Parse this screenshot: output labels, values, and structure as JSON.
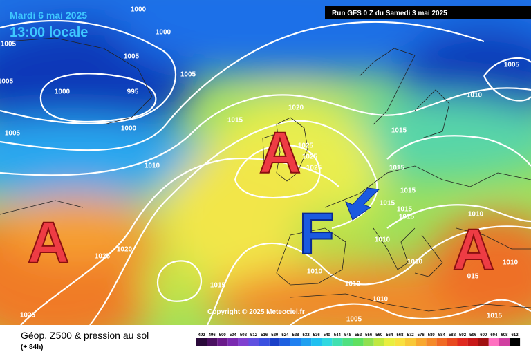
{
  "header": {
    "date": "Mardi 6 mai 2025",
    "time": "13:00 locale",
    "run": "Run GFS 0 Z du Samedi 3 mai 2025"
  },
  "copyright": "Copyright © 2025 Meteociel.fr",
  "footer": {
    "title": "Géop. Z500 & pression au sol",
    "lead": "(+ 84h)"
  },
  "scale": {
    "labels": [
      492,
      496,
      500,
      504,
      508,
      512,
      516,
      520,
      524,
      528,
      532,
      536,
      540,
      544,
      548,
      552,
      556,
      560,
      564,
      568,
      572,
      576,
      580,
      584,
      588,
      592,
      596,
      600,
      604,
      608,
      612
    ]
  },
  "centers": [
    "A",
    "A",
    "A",
    "F"
  ],
  "isobar_labels": [
    "1000",
    "1000",
    "1005",
    "1005",
    "1005",
    "1005",
    "1000",
    "995",
    "1000",
    "1005",
    "1010",
    "1020",
    "1015",
    "1025",
    "1025",
    "1025",
    "1015",
    "1015",
    "1015",
    "1015",
    "1015",
    "1015",
    "1010",
    "1010",
    "1010",
    "1010",
    "015",
    "1010",
    "1010",
    "1010",
    "1005",
    "1015",
    "1005",
    "1010",
    "1025",
    "1020",
    "1015",
    "1025"
  ]
}
